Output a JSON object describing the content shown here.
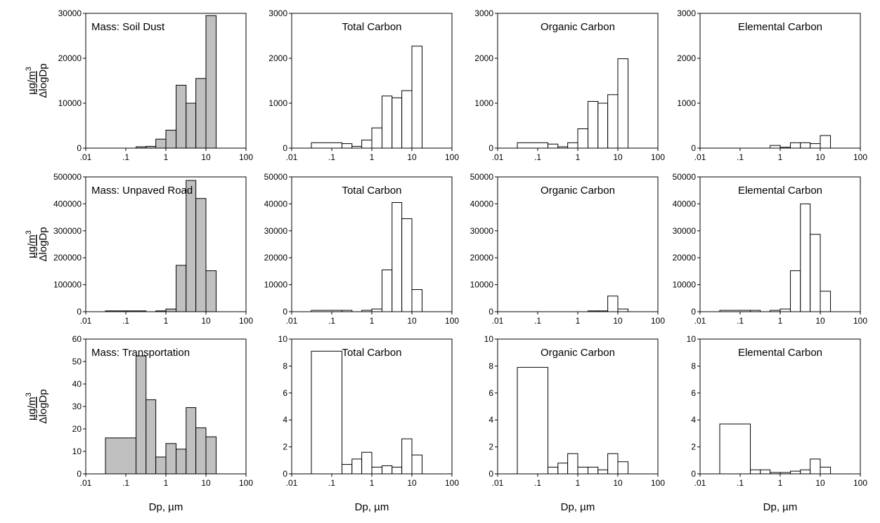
{
  "chart_data": [
    {
      "type": "histogram",
      "title": "Mass: Soil Dust",
      "ylabel": {
        "numerator": "µg/m",
        "superscript": "3",
        "denominator": "ΔlogDp"
      },
      "bins": [
        0.031,
        0.18,
        0.32,
        0.56,
        1,
        1.8,
        3.2,
        5.6,
        10,
        18
      ],
      "values": [
        0,
        300,
        400,
        2000,
        4000,
        14000,
        10000,
        15500,
        29500
      ],
      "color": "#c0c0c0",
      "log_x": true,
      "xlim": [
        0.01,
        100
      ],
      "xticks": [
        {
          "value": 0.01,
          "label": ".01"
        },
        {
          "value": 0.1,
          "label": ".1"
        },
        1,
        10,
        100
      ],
      "ylim": [
        0,
        30000
      ],
      "yticks": [
        0,
        10000,
        20000,
        30000
      ]
    },
    {
      "type": "histogram",
      "title": "Total Carbon",
      "bins": [
        0.031,
        0.18,
        0.32,
        0.56,
        1,
        1.8,
        3.2,
        5.6,
        10,
        18
      ],
      "values": [
        120,
        100,
        40,
        180,
        450,
        1160,
        1120,
        1280,
        2270
      ],
      "color": "#ffffff",
      "log_x": true,
      "xlim": [
        0.01,
        100
      ],
      "xticks": [
        {
          "value": 0.01,
          "label": ".01"
        },
        {
          "value": 0.1,
          "label": ".1"
        },
        1,
        10,
        100
      ],
      "ylim": [
        0,
        3000
      ],
      "yticks": [
        0,
        1000,
        2000,
        3000
      ]
    },
    {
      "type": "histogram",
      "title": "Organic Carbon",
      "bins": [
        0.031,
        0.18,
        0.32,
        0.56,
        1,
        1.8,
        3.2,
        5.6,
        10,
        18
      ],
      "values": [
        120,
        90,
        30,
        120,
        430,
        1040,
        1000,
        1190,
        1990
      ],
      "color": "#ffffff",
      "log_x": true,
      "xlim": [
        0.01,
        100
      ],
      "xticks": [
        {
          "value": 0.01,
          "label": ".01"
        },
        {
          "value": 0.1,
          "label": ".1"
        },
        1,
        10,
        100
      ],
      "ylim": [
        0,
        3000
      ],
      "yticks": [
        0,
        1000,
        2000,
        3000
      ]
    },
    {
      "type": "histogram",
      "title": "Elemental Carbon",
      "bins": [
        0.031,
        0.18,
        0.32,
        0.56,
        1,
        1.8,
        3.2,
        5.6,
        10,
        18
      ],
      "values": [
        0,
        0,
        0,
        60,
        20,
        120,
        120,
        100,
        280
      ],
      "color": "#ffffff",
      "log_x": true,
      "xlim": [
        0.01,
        100
      ],
      "xticks": [
        {
          "value": 0.01,
          "label": ".01"
        },
        {
          "value": 0.1,
          "label": ".1"
        },
        1,
        10,
        100
      ],
      "ylim": [
        0,
        3000
      ],
      "yticks": [
        0,
        1000,
        2000,
        3000
      ]
    },
    {
      "type": "histogram",
      "title": "Mass: Unpaved Road",
      "ylabel": {
        "numerator": "µg/m",
        "superscript": "3",
        "denominator": "ΔlogDp"
      },
      "bins": [
        0.031,
        0.18,
        0.32,
        0.56,
        1,
        1.8,
        3.2,
        5.6,
        10,
        18
      ],
      "values": [
        3000,
        3000,
        0,
        3000,
        10000,
        172000,
        487000,
        420000,
        152000
      ],
      "color": "#c0c0c0",
      "log_x": true,
      "xlim": [
        0.01,
        100
      ],
      "xticks": [
        {
          "value": 0.01,
          "label": ".01"
        },
        {
          "value": 0.1,
          "label": ".1"
        },
        1,
        10,
        100
      ],
      "ylim": [
        0,
        500000
      ],
      "yticks": [
        0,
        100000,
        200000,
        300000,
        400000,
        500000
      ]
    },
    {
      "type": "histogram",
      "title": "Total Carbon",
      "bins": [
        0.031,
        0.18,
        0.32,
        0.56,
        1,
        1.8,
        3.2,
        5.6,
        10,
        18
      ],
      "values": [
        500,
        500,
        0,
        500,
        1000,
        15500,
        40500,
        34500,
        8200
      ],
      "color": "#ffffff",
      "log_x": true,
      "xlim": [
        0.01,
        100
      ],
      "xticks": [
        {
          "value": 0.01,
          "label": ".01"
        },
        {
          "value": 0.1,
          "label": ".1"
        },
        1,
        10,
        100
      ],
      "ylim": [
        0,
        50000
      ],
      "yticks": [
        0,
        10000,
        20000,
        30000,
        40000,
        50000
      ]
    },
    {
      "type": "histogram",
      "title": "Organic Carbon",
      "bins": [
        0.031,
        0.18,
        0.32,
        0.56,
        1,
        1.8,
        3.2,
        5.6,
        10,
        18
      ],
      "values": [
        0,
        0,
        0,
        0,
        0,
        300,
        300,
        5800,
        1000
      ],
      "color": "#ffffff",
      "log_x": true,
      "xlim": [
        0.01,
        100
      ],
      "xticks": [
        {
          "value": 0.01,
          "label": ".01"
        },
        {
          "value": 0.1,
          "label": ".1"
        },
        1,
        10,
        100
      ],
      "ylim": [
        0,
        50000
      ],
      "yticks": [
        0,
        10000,
        20000,
        30000,
        40000,
        50000
      ]
    },
    {
      "type": "histogram",
      "title": "Elemental Carbon",
      "bins": [
        0.031,
        0.18,
        0.32,
        0.56,
        1,
        1.8,
        3.2,
        5.6,
        10,
        18
      ],
      "values": [
        500,
        500,
        0,
        500,
        1000,
        15200,
        40000,
        28700,
        7600
      ],
      "color": "#ffffff",
      "log_x": true,
      "xlim": [
        0.01,
        100
      ],
      "xticks": [
        {
          "value": 0.01,
          "label": ".01"
        },
        {
          "value": 0.1,
          "label": ".1"
        },
        1,
        10,
        100
      ],
      "ylim": [
        0,
        50000
      ],
      "yticks": [
        0,
        10000,
        20000,
        30000,
        40000,
        50000
      ]
    },
    {
      "type": "histogram",
      "title": "Mass: Transportation",
      "ylabel": {
        "numerator": "µg/m",
        "superscript": "3",
        "denominator": "ΔlogDp"
      },
      "xlabel": "Dp, µm",
      "bins": [
        0.031,
        0.18,
        0.32,
        0.56,
        1,
        1.8,
        3.2,
        5.6,
        10,
        18
      ],
      "values": [
        16,
        52.5,
        33,
        7.5,
        13.5,
        11,
        29.5,
        20.5,
        16.5
      ],
      "color": "#c0c0c0",
      "log_x": true,
      "xlim": [
        0.01,
        100
      ],
      "xticks": [
        {
          "value": 0.01,
          "label": ".01"
        },
        {
          "value": 0.1,
          "label": ".1"
        },
        1,
        10,
        100
      ],
      "ylim": [
        0,
        60
      ],
      "yticks": [
        0,
        10,
        20,
        30,
        40,
        50,
        60
      ]
    },
    {
      "type": "histogram",
      "title": "Total Carbon",
      "xlabel": "Dp, µm",
      "bins": [
        0.031,
        0.18,
        0.32,
        0.56,
        1,
        1.8,
        3.2,
        5.6,
        10,
        18
      ],
      "values": [
        9.1,
        0.7,
        1.1,
        1.6,
        0.5,
        0.6,
        0.5,
        2.6,
        1.4
      ],
      "color": "#ffffff",
      "log_x": true,
      "xlim": [
        0.01,
        100
      ],
      "xticks": [
        {
          "value": 0.01,
          "label": ".01"
        },
        {
          "value": 0.1,
          "label": ".1"
        },
        1,
        10,
        100
      ],
      "ylim": [
        0,
        10
      ],
      "yticks": [
        0,
        2,
        4,
        6,
        8,
        10
      ]
    },
    {
      "type": "histogram",
      "title": "Organic Carbon",
      "xlabel": "Dp, µm",
      "bins": [
        0.031,
        0.18,
        0.32,
        0.56,
        1,
        1.8,
        3.2,
        5.6,
        10,
        18
      ],
      "values": [
        7.9,
        0.5,
        0.8,
        1.5,
        0.5,
        0.5,
        0.3,
        1.5,
        0.9
      ],
      "color": "#ffffff",
      "log_x": true,
      "xlim": [
        0.01,
        100
      ],
      "xticks": [
        {
          "value": 0.01,
          "label": ".01"
        },
        {
          "value": 0.1,
          "label": ".1"
        },
        1,
        10,
        100
      ],
      "ylim": [
        0,
        10
      ],
      "yticks": [
        0,
        2,
        4,
        6,
        8,
        10
      ]
    },
    {
      "type": "histogram",
      "title": "Elemental Carbon",
      "xlabel": "Dp, µm",
      "bins": [
        0.031,
        0.18,
        0.32,
        0.56,
        1,
        1.8,
        3.2,
        5.6,
        10,
        18
      ],
      "values": [
        3.7,
        0.3,
        0.3,
        0.1,
        0.1,
        0.2,
        0.3,
        1.1,
        0.5
      ],
      "color": "#ffffff",
      "log_x": true,
      "xlim": [
        0.01,
        100
      ],
      "xticks": [
        {
          "value": 0.01,
          "label": ".01"
        },
        {
          "value": 0.1,
          "label": ".1"
        },
        1,
        10,
        100
      ],
      "ylim": [
        0,
        10
      ],
      "yticks": [
        0,
        2,
        4,
        6,
        8,
        10
      ]
    }
  ]
}
